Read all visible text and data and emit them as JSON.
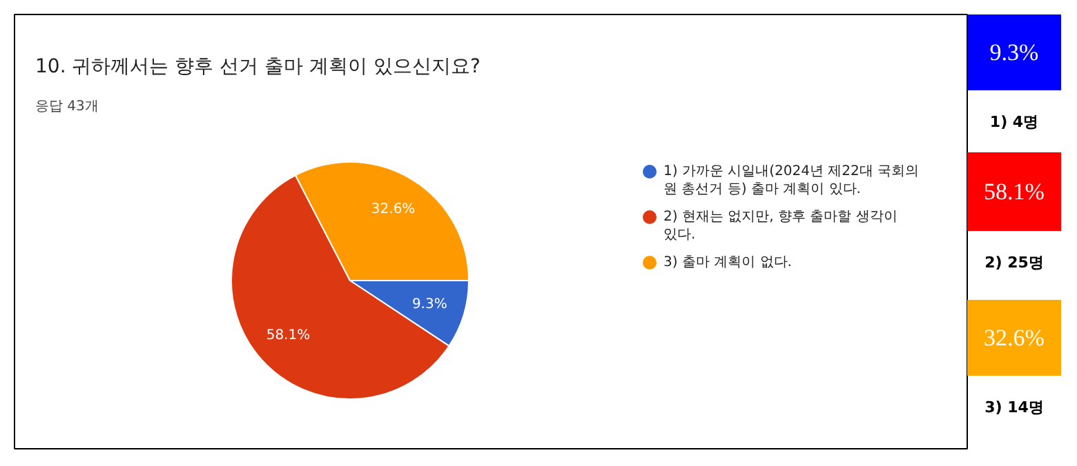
{
  "chart_data": {
    "type": "pie",
    "title": "10. 귀하께서는 향후 선거 출마 계획이 있으신지요?",
    "subtitle": "응답 43개",
    "categories": [
      "1) 가까운 시일내(2024년 제22대 국회의원 총선거 등) 출마 계획이 있다.",
      "2) 현재는 없지만, 향후 출마할 생각이 있다.",
      "3) 출마 계획이 없다."
    ],
    "values": [
      9.3,
      58.1,
      32.6
    ],
    "colors": [
      "#3366cc",
      "#dc3912",
      "#ff9900"
    ],
    "value_labels": [
      "9.3%",
      "58.1%",
      "32.6%"
    ],
    "legend": "right",
    "annotations": [
      "9.3%",
      "1) 4명",
      "58.1%",
      "2) 25명",
      "32.6%",
      "3) 14명"
    ]
  }
}
